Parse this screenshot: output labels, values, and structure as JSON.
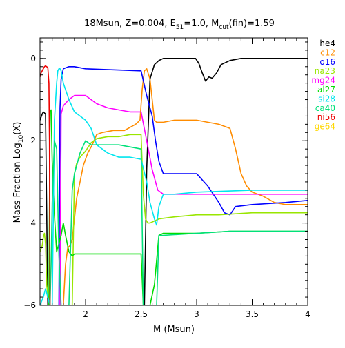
{
  "chart_data": {
    "type": "line",
    "title": {
      "prefix": "18Msun, Z=0.004, E",
      "sub1": "51",
      "middle": "=1.0, M",
      "sub2": "cut",
      "suffix": "(fin)=1.59"
    },
    "xlabel": "M (Msun)",
    "ylabel": {
      "main": "Mass Fraction Log",
      "sub": "10",
      "suffix": "(X)"
    },
    "xlim": [
      1.59,
      4.0
    ],
    "ylim": [
      -6.0,
      0.5
    ],
    "x_ticks": [
      {
        "value": 2.0,
        "label": "2"
      },
      {
        "value": 2.5,
        "label": "2.5"
      },
      {
        "value": 3.0,
        "label": "3"
      },
      {
        "value": 3.5,
        "label": "3.5"
      },
      {
        "value": 4.0,
        "label": "4"
      }
    ],
    "y_ticks": [
      {
        "value": 0,
        "label": "0"
      },
      {
        "value": -2,
        "label": "2"
      },
      {
        "value": -4,
        "label": "4"
      },
      {
        "value": -6,
        "label": "−6"
      }
    ],
    "legend_position": "right",
    "series": [
      {
        "name": "he4",
        "color": "#000000",
        "x": [
          1.59,
          1.61,
          1.62,
          1.64,
          1.66,
          1.67,
          1.68,
          1.69,
          1.7,
          1.71,
          1.72,
          1.74,
          1.76,
          1.77,
          1.78,
          1.79,
          1.8,
          1.81,
          2.49,
          2.5,
          2.51,
          2.52,
          2.53,
          2.55,
          2.58,
          2.62,
          2.66,
          2.7,
          2.8,
          2.9,
          2.99,
          3.02,
          3.05,
          3.08,
          3.11,
          3.14,
          3.18,
          3.22,
          3.3,
          3.4,
          4.0
        ],
        "y": [
          -1.5,
          -1.35,
          -1.3,
          -1.35,
          -6.0,
          -6.0,
          -6.0,
          -6.0,
          -6.0,
          -6.0,
          -6.0,
          -6.0,
          -6.0,
          -6.0,
          -6.0,
          -6.0,
          -6.0,
          -6.0,
          -6.0,
          -6.0,
          -6.0,
          -6.0,
          -6.0,
          -2.7,
          -0.5,
          -0.15,
          -0.05,
          0.0,
          0.0,
          0.0,
          0.0,
          -0.12,
          -0.35,
          -0.55,
          -0.45,
          -0.48,
          -0.35,
          -0.15,
          -0.05,
          0.0,
          0.0
        ]
      },
      {
        "name": "c12",
        "color": "#ff8c00",
        "x": [
          1.78,
          1.8,
          1.82,
          1.84,
          1.86,
          1.88,
          1.9,
          1.92,
          1.95,
          1.98,
          2.02,
          2.06,
          2.1,
          2.15,
          2.25,
          2.35,
          2.45,
          2.49,
          2.51,
          2.53,
          2.55,
          2.58,
          2.6,
          2.62,
          2.64,
          2.7,
          2.8,
          2.9,
          3.0,
          3.1,
          3.2,
          3.3,
          3.35,
          3.4,
          3.45,
          3.5,
          3.6,
          3.7,
          3.8,
          4.0
        ],
        "y": [
          -6.0,
          -6.0,
          -5.0,
          -4.6,
          -4.55,
          -4.4,
          -3.9,
          -3.4,
          -3.0,
          -2.6,
          -2.3,
          -2.1,
          -1.85,
          -1.8,
          -1.75,
          -1.75,
          -1.6,
          -1.5,
          -0.75,
          -0.3,
          -0.25,
          -0.5,
          -1.0,
          -1.5,
          -1.55,
          -1.55,
          -1.5,
          -1.5,
          -1.5,
          -1.55,
          -1.6,
          -1.7,
          -2.2,
          -2.8,
          -3.1,
          -3.25,
          -3.35,
          -3.5,
          -3.55,
          -3.55
        ]
      },
      {
        "name": "o16",
        "color": "#0000ff",
        "x": [
          1.59,
          1.62,
          1.65,
          1.67,
          1.7,
          1.71,
          1.72,
          1.73,
          1.74,
          1.75,
          1.76,
          1.77,
          1.78,
          1.8,
          1.85,
          1.9,
          2.0,
          2.5,
          2.55,
          2.6,
          2.63,
          2.66,
          2.7,
          2.8,
          3.0,
          3.1,
          3.2,
          3.25,
          3.3,
          3.35,
          3.5,
          3.8,
          4.0
        ],
        "y": [
          -6.0,
          -6.0,
          -6.0,
          -6.0,
          -6.0,
          -6.0,
          -6.0,
          -6.0,
          -6.0,
          -6.0,
          -6.0,
          -1.2,
          -0.5,
          -0.25,
          -0.2,
          -0.2,
          -0.25,
          -0.3,
          -0.9,
          -1.4,
          -2.0,
          -2.5,
          -2.8,
          -2.8,
          -2.8,
          -3.1,
          -3.5,
          -3.75,
          -3.8,
          -3.6,
          -3.55,
          -3.5,
          -3.45
        ]
      },
      {
        "name": "na23",
        "color": "#99e600",
        "x": [
          1.59,
          1.61,
          1.62,
          1.63,
          1.64,
          1.65,
          1.67,
          1.7,
          1.72,
          1.75,
          1.78,
          1.8,
          1.82,
          1.84,
          1.86,
          1.88,
          1.9,
          1.92,
          1.95,
          2.0,
          2.05,
          2.1,
          2.2,
          2.3,
          2.4,
          2.5,
          2.52,
          2.54,
          2.56,
          2.58,
          2.62,
          2.66,
          2.8,
          3.0,
          3.2,
          3.5,
          4.0
        ],
        "y": [
          -4.7,
          -4.55,
          -4.35,
          -4.25,
          -4.5,
          -5.5,
          -6.0,
          -6.0,
          -6.0,
          -6.0,
          -6.0,
          -6.0,
          -6.0,
          -6.0,
          -6.0,
          -6.0,
          -2.8,
          -2.55,
          -2.4,
          -2.25,
          -2.05,
          -1.95,
          -1.9,
          -1.9,
          -1.85,
          -1.85,
          -3.3,
          -3.9,
          -4.0,
          -4.0,
          -3.95,
          -3.9,
          -3.85,
          -3.8,
          -3.8,
          -3.75,
          -3.75
        ]
      },
      {
        "name": "mg24",
        "color": "#ff00ff",
        "x": [
          1.59,
          1.65,
          1.7,
          1.73,
          1.75,
          1.76,
          1.77,
          1.78,
          1.8,
          1.85,
          1.9,
          2.0,
          2.1,
          2.2,
          2.3,
          2.4,
          2.5,
          2.55,
          2.6,
          2.65,
          2.7,
          2.8,
          3.0,
          3.2,
          3.5,
          4.0
        ],
        "y": [
          -6.0,
          -6.0,
          -6.0,
          -6.0,
          -6.0,
          -6.0,
          -6.0,
          -1.35,
          -1.15,
          -1.0,
          -0.9,
          -0.9,
          -1.1,
          -1.2,
          -1.25,
          -1.3,
          -1.3,
          -2.0,
          -2.7,
          -3.2,
          -3.3,
          -3.3,
          -3.3,
          -3.3,
          -3.3,
          -3.3
        ]
      },
      {
        "name": "al27",
        "color": "#00dd00",
        "x": [
          1.6,
          1.66,
          1.67,
          1.68,
          1.69,
          1.7,
          1.72,
          1.74,
          1.76,
          1.78,
          1.8,
          1.82,
          1.85,
          1.88,
          1.9,
          1.92,
          1.95,
          2.0,
          2.05,
          2.1,
          2.2,
          2.3,
          2.4,
          2.5,
          2.52,
          2.55,
          2.58,
          2.62,
          2.66,
          2.7,
          3.0,
          3.3,
          3.5,
          4.0
        ],
        "y": [
          -6.0,
          -6.0,
          -6.0,
          -1.3,
          -1.25,
          -2.5,
          -3.8,
          -4.7,
          -4.5,
          -4.3,
          -4.0,
          -4.3,
          -4.7,
          -4.8,
          -4.75,
          -4.75,
          -4.75,
          -4.75,
          -4.75,
          -4.75,
          -4.75,
          -4.75,
          -4.75,
          -4.75,
          -6.0,
          -6.0,
          -6.0,
          -5.5,
          -4.3,
          -4.25,
          -4.25,
          -4.2,
          -4.2,
          -4.2
        ]
      },
      {
        "name": "si28",
        "color": "#00e5ee",
        "x": [
          1.59,
          1.62,
          1.64,
          1.66,
          1.68,
          1.7,
          1.72,
          1.74,
          1.75,
          1.76,
          1.77,
          1.78,
          1.8,
          1.85,
          1.9,
          1.95,
          2.0,
          2.05,
          2.1,
          2.2,
          2.3,
          2.4,
          2.5,
          2.55,
          2.58,
          2.6,
          2.62,
          2.64,
          2.66,
          2.7,
          2.8,
          3.0,
          3.5,
          4.0
        ],
        "y": [
          -6.0,
          -5.8,
          -5.6,
          -5.8,
          -6.0,
          -6.0,
          -1.5,
          -0.6,
          -0.3,
          -0.25,
          -0.25,
          -0.3,
          -0.6,
          -1.0,
          -1.3,
          -1.4,
          -1.5,
          -1.7,
          -2.1,
          -2.3,
          -2.4,
          -2.4,
          -2.45,
          -3.0,
          -3.5,
          -3.7,
          -3.9,
          -4.05,
          -3.6,
          -3.3,
          -3.3,
          -3.25,
          -3.2,
          -3.2
        ]
      },
      {
        "name": "ca40",
        "color": "#00e07a",
        "x": [
          1.65,
          1.68,
          1.69,
          1.7,
          1.72,
          1.74,
          1.76,
          1.78,
          1.8,
          1.82,
          1.85,
          1.88,
          1.9,
          1.95,
          2.0,
          2.05,
          2.1,
          2.2,
          2.3,
          2.4,
          2.5,
          2.52,
          2.54,
          2.56,
          2.6,
          2.64,
          2.66,
          2.7,
          3.0,
          3.3,
          3.5,
          4.0
        ],
        "y": [
          -6.0,
          -6.0,
          -5.0,
          -3.5,
          -2.0,
          -2.2,
          -4.8,
          -6.0,
          -6.0,
          -6.0,
          -6.0,
          -3.2,
          -2.8,
          -2.3,
          -2.0,
          -2.1,
          -2.1,
          -2.1,
          -2.1,
          -2.15,
          -2.2,
          -6.0,
          -6.0,
          -6.0,
          -6.0,
          -6.0,
          -4.3,
          -4.3,
          -4.25,
          -4.2,
          -4.2,
          -4.2
        ]
      },
      {
        "name": "ni56",
        "color": "#ee0000",
        "x": [
          1.59,
          1.6,
          1.61,
          1.62,
          1.63,
          1.64,
          1.66,
          1.67,
          1.675,
          1.68,
          1.69,
          1.7,
          1.72,
          1.74,
          1.76,
          1.78,
          1.79,
          1.8
        ],
        "y": [
          -0.45,
          -0.35,
          -0.3,
          -0.25,
          -0.2,
          -0.18,
          -0.22,
          -0.6,
          -2.0,
          -6.0,
          -6.0,
          -6.0,
          -6.0,
          -6.0,
          -6.0,
          -6.0,
          -6.0,
          -6.0
        ]
      },
      {
        "name": "ge64",
        "color": "#ffd700",
        "x": [
          1.6,
          1.62
        ],
        "y": [
          -6.0,
          -6.0
        ]
      }
    ]
  }
}
